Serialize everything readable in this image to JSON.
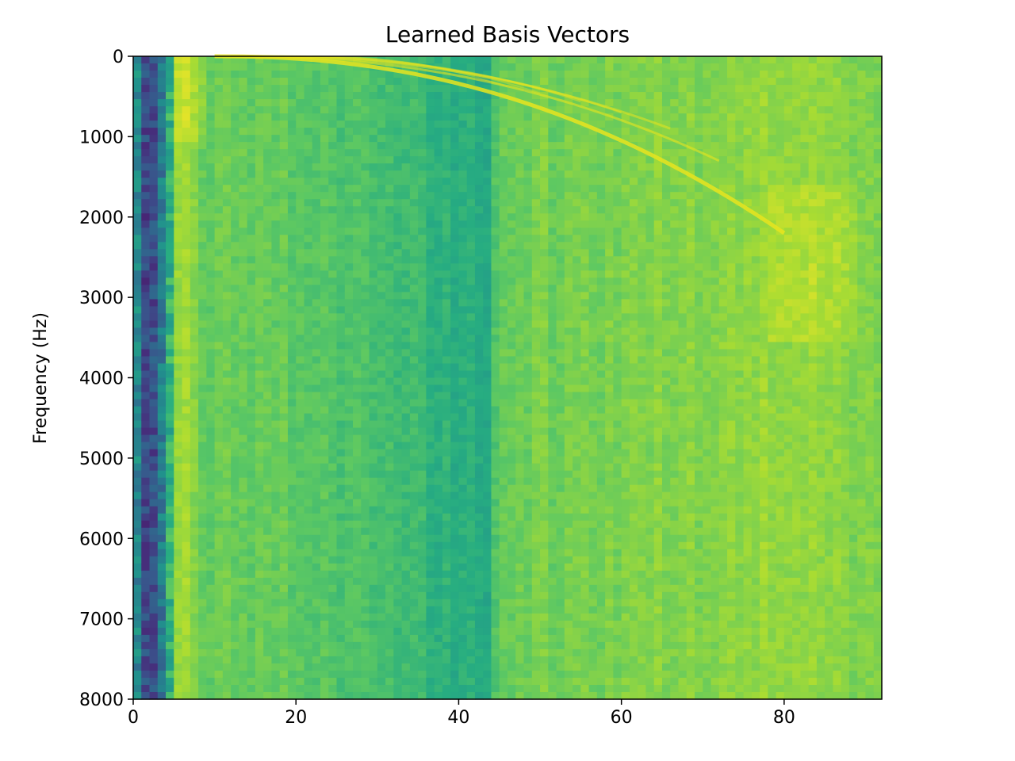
{
  "chart_data": {
    "type": "heatmap",
    "title": "Learned Basis Vectors",
    "xlabel": "",
    "ylabel": "Frequency (Hz)",
    "xlim": [
      0,
      92
    ],
    "ylim": [
      8000,
      0
    ],
    "y_inverted": true,
    "colormap": "viridis",
    "x_ticks": [
      "0",
      "20",
      "40",
      "60",
      "80"
    ],
    "x_tick_values": [
      0,
      20,
      40,
      60,
      80
    ],
    "y_ticks": [
      "0",
      "1000",
      "2000",
      "3000",
      "4000",
      "5000",
      "6000",
      "7000",
      "8000"
    ],
    "y_tick_values": [
      0,
      1000,
      2000,
      3000,
      4000,
      5000,
      6000,
      7000,
      8000
    ],
    "grid": false,
    "column_profile": [
      {
        "x": 0,
        "level": 0.62
      },
      {
        "x": 1,
        "level": 0.3
      },
      {
        "x": 2,
        "level": 0.12
      },
      {
        "x": 3,
        "level": 0.38
      },
      {
        "x": 4,
        "level": 0.5
      },
      {
        "x": 5,
        "level": 0.82
      },
      {
        "x": 6,
        "level": 0.9
      },
      {
        "x": 7,
        "level": 0.86
      },
      {
        "x": 8,
        "level": 0.78
      },
      {
        "x": 20,
        "level": 0.76
      },
      {
        "x": 43,
        "level": 0.62
      },
      {
        "x": 44,
        "level": 0.64
      },
      {
        "x": 45,
        "level": 0.78
      },
      {
        "x": 80,
        "level": 0.84
      },
      {
        "x": 91,
        "level": 0.8
      }
    ],
    "harmonic_ridges": "bright curved ridges from top (~0 Hz near x=10) sweeping to ~2200 Hz near x=80"
  }
}
